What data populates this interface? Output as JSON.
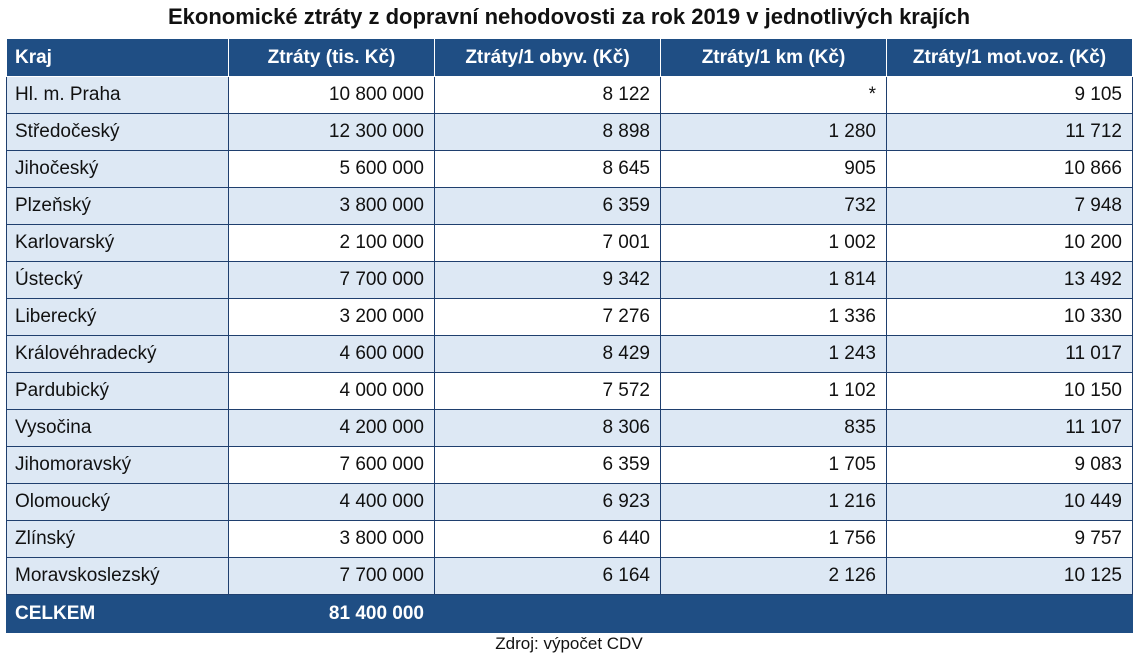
{
  "title": "Ekonomické ztráty z dopravní nehodovosti za rok 2019 v jednotlivých krajích",
  "header": [
    "Kraj",
    "Ztráty (tis. Kč)",
    "Ztráty/1 obyv. (Kč)",
    "Ztráty/1 km (Kč)",
    "Ztráty/1 mot.voz. (Kč)"
  ],
  "rows": [
    [
      "Hl. m. Praha",
      "10 800 000",
      "8 122",
      "*",
      "9 105"
    ],
    [
      "Středočeský",
      "12 300 000",
      "8 898",
      "1 280",
      "11 712"
    ],
    [
      "Jihočeský",
      "5 600 000",
      "8 645",
      "905",
      "10 866"
    ],
    [
      "Plzeňský",
      "3 800 000",
      "6 359",
      "732",
      "7 948"
    ],
    [
      "Karlovarský",
      "2 100 000",
      "7 001",
      "1 002",
      "10 200"
    ],
    [
      "Ústecký",
      "7 700 000",
      "9 342",
      "1 814",
      "13 492"
    ],
    [
      "Liberecký",
      "3 200 000",
      "7 276",
      "1 336",
      "10 330"
    ],
    [
      "Královéhradecký",
      "4 600 000",
      "8 429",
      "1 243",
      "11 017"
    ],
    [
      "Pardubický",
      "4 000 000",
      "7 572",
      "1 102",
      "10 150"
    ],
    [
      "Vysočina",
      "4 200 000",
      "8 306",
      "835",
      "11 107"
    ],
    [
      "Jihomoravský",
      "7 600 000",
      "6 359",
      "1 705",
      "9 083"
    ],
    [
      "Olomoucký",
      "4 400 000",
      "6 923",
      "1 216",
      "10 449"
    ],
    [
      "Zlínský",
      "3 800 000",
      "6 440",
      "1 756",
      "9 757"
    ],
    [
      "Moravskoslezský",
      "7 700 000",
      "6 164",
      "2 126",
      "10 125"
    ]
  ],
  "total": {
    "label": "CELKEM",
    "value": "81 400 000"
  },
  "source": "Zdroj: výpočet CDV",
  "colors": {
    "header_bg": "#1f4e84",
    "stripe_bg": "#dde8f4",
    "header_text": "#ffffff"
  }
}
